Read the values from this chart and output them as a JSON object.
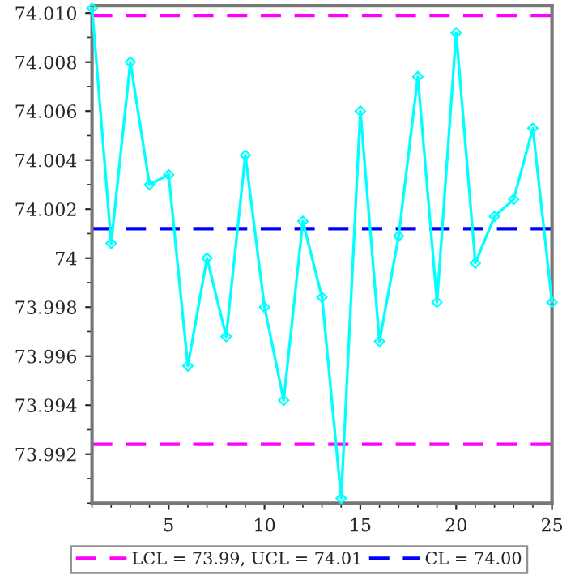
{
  "chart_data": {
    "type": "line",
    "x": [
      1,
      2,
      3,
      4,
      5,
      6,
      7,
      8,
      9,
      10,
      11,
      12,
      13,
      14,
      15,
      16,
      17,
      18,
      19,
      20,
      21,
      22,
      23,
      24,
      25
    ],
    "series": [
      {
        "color": "#00ffff",
        "values": [
          74.0102,
          74.0006,
          74.008,
          74.003,
          74.0034,
          73.9956,
          74.0,
          73.9968,
          74.0042,
          73.998,
          73.9942,
          74.0015,
          73.9984,
          73.9902,
          74.006,
          73.9966,
          74.0009,
          74.0074,
          73.9982,
          74.0092,
          73.9998,
          74.0017,
          74.0024,
          74.0053,
          73.9982
        ]
      }
    ],
    "marker": "diamond",
    "line_style": "solid",
    "xlim": [
      1,
      25
    ],
    "xticks": [
      5,
      10,
      15,
      20,
      25
    ],
    "ylim": [
      73.99,
      74.0103
    ],
    "yticks": [
      73.992,
      73.994,
      73.996,
      73.998,
      {
        "value": 74,
        "label": "74"
      },
      74.002,
      74.004,
      74.006,
      74.008,
      {
        "value": 74.01,
        "label": "74.010"
      }
    ],
    "ref_lines": [
      {
        "axis": "y",
        "value": 73.9924,
        "label": "LCL = 73.99, UCL = 74.01",
        "color": "#ff00ff",
        "line_style": "dashed"
      },
      {
        "axis": "y",
        "value": 74.0099,
        "color": "#ff00ff",
        "line_style": "dashed"
      },
      {
        "axis": "y",
        "value": 74.0012,
        "label": "CL = 74.00",
        "color": "#0000ff",
        "line_style": "dashed"
      }
    ],
    "legend": "bottom",
    "grid": false
  }
}
